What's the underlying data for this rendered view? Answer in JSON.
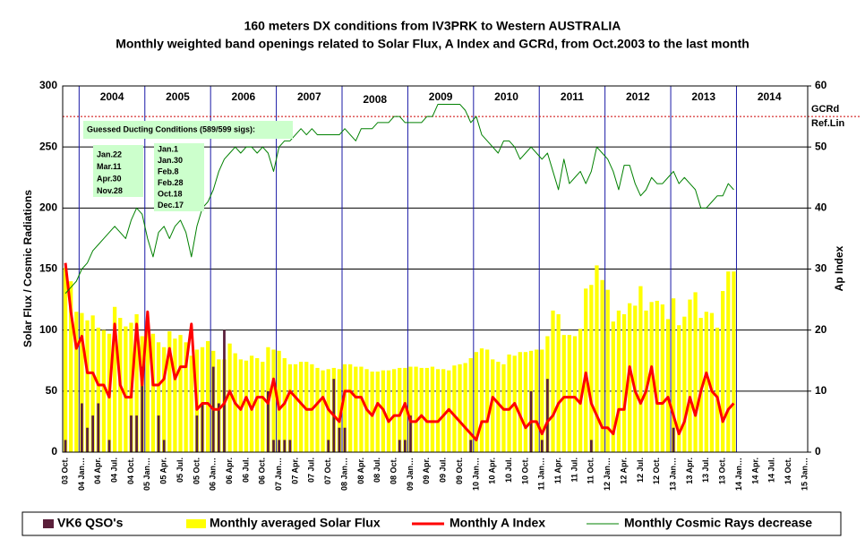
{
  "chart_data": {
    "type": "combo",
    "title": "160 meters DX conditions from IV3PRK to Western AUSTRALIA",
    "subtitle": "Monthly weighted band openings related to Solar Flux, A Index and GCRd, from Oct.2003 to the last month",
    "ylabel": "Solar Flux / Cosmic Radiations",
    "y2label": "Ap Index",
    "ylim": [
      0,
      300
    ],
    "yticks": [
      0,
      50,
      100,
      150,
      200,
      250,
      300
    ],
    "y2lim": [
      0,
      60
    ],
    "y2ticks": [
      0,
      10,
      20,
      30,
      40,
      50,
      60
    ],
    "grid": true,
    "year_labels": [
      "2004",
      "2005",
      "2006",
      "2007",
      "2008",
      "2009",
      "2010",
      "2011",
      "2012",
      "2013",
      "2014"
    ],
    "reference_line": {
      "value": 55,
      "labels": [
        "GCRd",
        "Ref.Lin"
      ],
      "color": "#cc0000"
    },
    "ducting_note": {
      "title": "Guessed Ducting Conditions (589/599 sigs):",
      "dates_left": [
        "Jan.22",
        "Mar.11",
        "Apr.30",
        "Nov.28"
      ],
      "dates_right": [
        "Jan.1",
        "Jan.30",
        "Feb.8",
        "Feb.28",
        "Oct.18",
        "Dec.17"
      ]
    },
    "categories": [
      "03 Oct.",
      null,
      null,
      "04 Jan…",
      null,
      null,
      "04 Apr.",
      null,
      null,
      "04 Jul.",
      null,
      null,
      "04 Oct.",
      null,
      null,
      "05 Jan…",
      null,
      null,
      "05 Apr.",
      null,
      null,
      "05 Jul.",
      null,
      null,
      "05 Oct.",
      null,
      null,
      "06 Jan…",
      null,
      null,
      "06 Apr.",
      null,
      null,
      "06 Jul.",
      null,
      null,
      "06 Oct.",
      null,
      null,
      "07 Jan…",
      null,
      null,
      "07 Apr.",
      null,
      null,
      "07 Jul.",
      null,
      null,
      "07 Oct.",
      null,
      null,
      "08 Jan…",
      null,
      null,
      "08 Apr.",
      null,
      null,
      "08 Jul.",
      null,
      null,
      "08 Oct.",
      null,
      null,
      "09 Jan…",
      null,
      null,
      "09 Apr.",
      null,
      null,
      "09 Jul.",
      null,
      null,
      "09 Oct.",
      null,
      null,
      "10 Jan…",
      null,
      null,
      "10 Apr.",
      null,
      null,
      "10 Jul.",
      null,
      null,
      "10 Oct.",
      null,
      null,
      "11 Jan…",
      null,
      null,
      "11 Apr.",
      null,
      null,
      "11 Jul.",
      null,
      null,
      "11 Oct.",
      null,
      null,
      "12 Jan…",
      null,
      null,
      "12 Apr.",
      null,
      null,
      "12 Jul.",
      null,
      null,
      "12 Oct.",
      null,
      null,
      "13 Jan…",
      null,
      null,
      "13 Apr.",
      null,
      null,
      "13 Jul.",
      null,
      null,
      "13 Oct.",
      null,
      null,
      "14 Jan…",
      null,
      null,
      "14 Apr.",
      null,
      null,
      "14 Jul.",
      null,
      null,
      "14 Oct.",
      null,
      null,
      "15 Jan…"
    ],
    "series": [
      {
        "name": "VK6 QSO's",
        "type": "bar",
        "color": "#5a1f3a",
        "values": [
          10,
          null,
          null,
          40,
          20,
          30,
          40,
          null,
          10,
          null,
          null,
          null,
          30,
          30,
          70,
          null,
          null,
          30,
          10,
          null,
          null,
          null,
          null,
          null,
          30,
          40,
          null,
          70,
          40,
          100,
          null,
          null,
          null,
          null,
          null,
          null,
          null,
          50,
          10,
          10,
          10,
          10,
          null,
          null,
          null,
          null,
          null,
          null,
          10,
          60,
          20,
          20,
          null,
          null,
          null,
          null,
          null,
          null,
          null,
          null,
          null,
          10,
          10,
          30,
          null,
          null,
          null,
          null,
          null,
          null,
          null,
          null,
          null,
          null,
          10,
          null,
          null,
          null,
          null,
          null,
          null,
          null,
          null,
          null,
          null,
          50,
          null,
          10,
          60,
          null,
          null,
          null,
          null,
          null,
          null,
          null,
          10,
          null,
          null,
          null,
          null,
          null,
          null,
          null,
          null,
          null,
          null,
          null,
          null,
          null,
          null,
          20,
          null,
          null,
          null,
          null,
          null,
          null,
          null,
          null,
          null,
          null,
          null,
          null,
          null,
          null,
          null,
          null,
          null,
          null,
          null,
          null,
          null,
          null,
          null,
          null
        ]
      },
      {
        "name": "Monthly averaged Solar Flux",
        "type": "bar",
        "color": "#ffff00",
        "values": [
          151,
          140,
          115,
          114,
          108,
          112,
          102,
          100,
          97,
          119,
          110,
          103,
          106,
          113,
          95,
          102,
          97,
          90,
          86,
          99,
          93,
          96,
          90,
          79,
          84,
          86,
          91,
          83,
          76,
          76,
          89,
          81,
          76,
          75,
          79,
          77,
          74,
          86,
          84,
          83,
          77,
          72,
          72,
          74,
          74,
          72,
          69,
          67,
          68,
          69,
          68,
          72,
          72,
          70,
          70,
          68,
          66,
          66,
          67,
          67,
          68,
          69,
          69,
          70,
          70,
          69,
          69,
          70,
          68,
          68,
          67,
          71,
          72,
          73,
          77,
          82,
          85,
          84,
          76,
          74,
          72,
          80,
          79,
          82,
          82,
          83,
          84,
          84,
          95,
          116,
          113,
          96,
          96,
          95,
          101,
          134,
          137,
          153,
          141,
          133,
          107,
          116,
          113,
          122,
          120,
          136,
          116,
          123,
          124,
          121,
          109,
          126,
          104,
          111,
          125,
          131,
          110,
          115,
          114,
          102,
          132,
          148,
          148,
          null,
          null,
          null,
          null,
          null,
          null,
          null,
          null,
          null,
          null,
          null,
          null,
          null
        ]
      },
      {
        "name": "Monthly A Index",
        "type": "line",
        "axis": "y2",
        "color": "#ff0000",
        "width": 3,
        "values": [
          31,
          23,
          17,
          19,
          13,
          13,
          11,
          11,
          9,
          21,
          11,
          9,
          9,
          21,
          11,
          23,
          11,
          11,
          12,
          17,
          12,
          14,
          14,
          21,
          7,
          8,
          8,
          7,
          7,
          8,
          10,
          8,
          7,
          9,
          7,
          9,
          9,
          8,
          12,
          7,
          8,
          10,
          9,
          8,
          7,
          7,
          8,
          9,
          7,
          6,
          5,
          10,
          10,
          9,
          9,
          7,
          6,
          8,
          7,
          5,
          6,
          6,
          8,
          5,
          5,
          6,
          5,
          5,
          5,
          6,
          7,
          6,
          5,
          4,
          3,
          2,
          5,
          5,
          9,
          8,
          7,
          7,
          8,
          6,
          4,
          5,
          5,
          3,
          5,
          6,
          8,
          9,
          9,
          9,
          8,
          13,
          8,
          6,
          4,
          4,
          3,
          7,
          7,
          14,
          10,
          8,
          10,
          14,
          8,
          8,
          9,
          6,
          3,
          5,
          9,
          6,
          10,
          13,
          10,
          9,
          5,
          7,
          8,
          null,
          null,
          null,
          null,
          null,
          null,
          null,
          null,
          null,
          null,
          null,
          null,
          null
        ]
      },
      {
        "name": "Monthly Cosmic Rays decrease",
        "type": "line",
        "axis": "y2",
        "color": "#008000",
        "width": 1,
        "values": [
          26,
          27,
          28,
          30,
          31,
          33,
          34,
          35,
          36,
          37,
          36,
          35,
          38,
          40,
          39,
          35,
          32,
          36,
          37,
          35,
          37,
          38,
          36,
          32,
          37,
          40,
          41,
          43,
          46,
          48,
          49,
          50,
          49,
          50,
          50,
          49,
          50,
          49,
          46,
          50,
          51,
          51,
          52,
          53,
          52,
          53,
          52,
          52,
          52,
          52,
          52,
          53,
          52,
          51,
          53,
          53,
          53,
          54,
          54,
          54,
          55,
          55,
          54,
          54,
          54,
          54,
          55,
          55,
          57,
          57,
          57,
          57,
          57,
          56,
          54,
          55,
          52,
          51,
          50,
          49,
          51,
          51,
          50,
          48,
          49,
          50,
          49,
          48,
          49,
          46,
          43,
          48,
          44,
          45,
          46,
          44,
          46,
          50,
          49,
          48,
          46,
          43,
          47,
          47,
          44,
          42,
          43,
          45,
          44,
          44,
          45,
          46,
          44,
          45,
          44,
          43,
          40,
          40,
          41,
          42,
          42,
          44,
          43,
          null,
          null,
          null,
          null,
          null,
          null,
          null,
          null,
          null,
          null,
          null,
          null,
          null
        ]
      }
    ]
  }
}
